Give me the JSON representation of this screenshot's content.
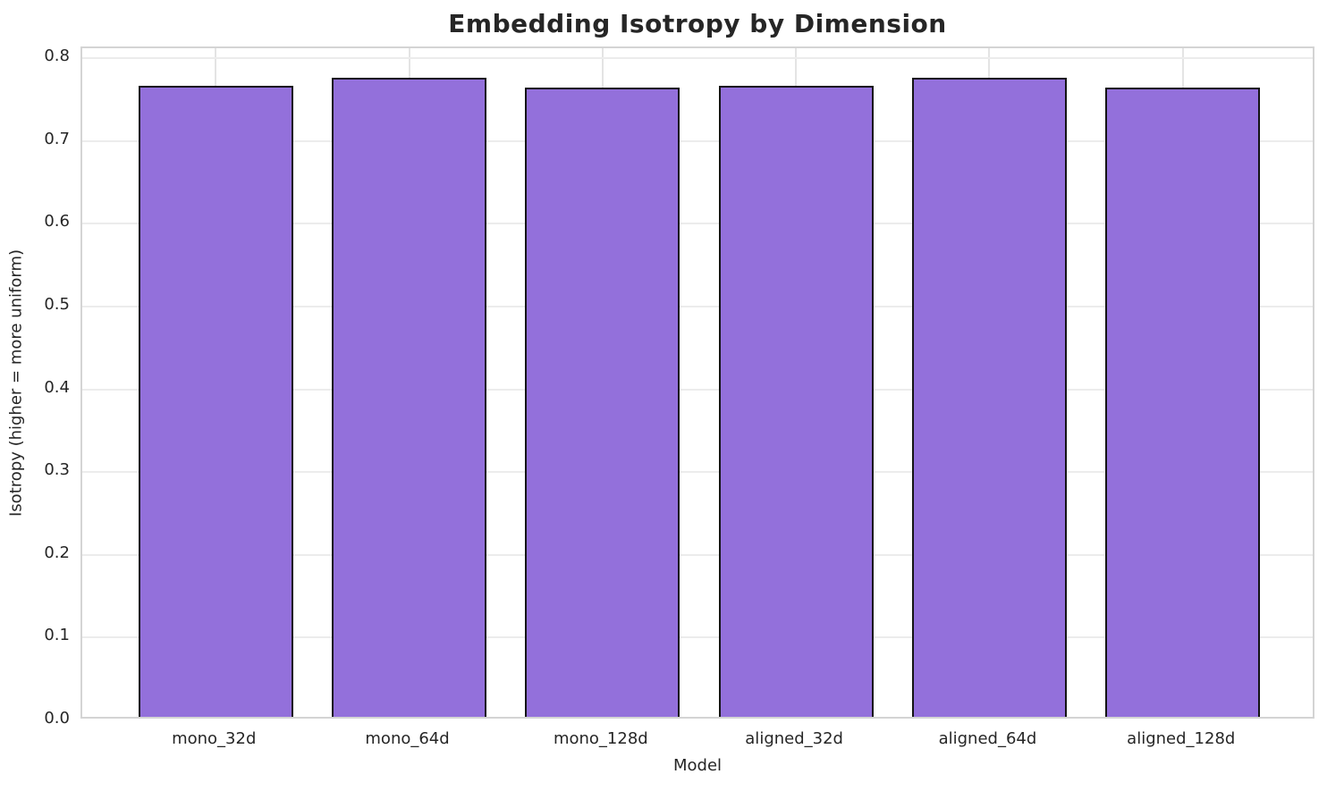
{
  "chart_data": {
    "type": "bar",
    "title": "Embedding Isotropy by Dimension",
    "xlabel": "Model",
    "ylabel": "Isotropy (higher = more uniform)",
    "categories": [
      "mono_32d",
      "mono_64d",
      "mono_128d",
      "aligned_32d",
      "aligned_64d",
      "aligned_128d"
    ],
    "values": [
      0.762,
      0.772,
      0.76,
      0.762,
      0.772,
      0.76
    ],
    "yticks": [
      0.0,
      0.1,
      0.2,
      0.3,
      0.4,
      0.5,
      0.6,
      0.7,
      0.8
    ],
    "ylim": [
      0,
      0.812
    ],
    "grid": true,
    "legend": false,
    "bar_color": "#9370DB",
    "bar_edge_color": "#141414",
    "grid_color": "#e8e8e8",
    "spine_color": "#d4d4d4",
    "text_color": "#262626",
    "background": "#ffffff"
  }
}
